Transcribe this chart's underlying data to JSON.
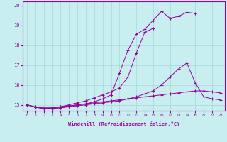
{
  "bg_color": "#c8eef0",
  "grid_color": "#a0d8dc",
  "line_color": "#990099",
  "xlabel": "Windchill (Refroidissement éolien,°C)",
  "x_values": [
    0,
    1,
    2,
    3,
    4,
    5,
    6,
    7,
    8,
    9,
    10,
    11,
    12,
    13,
    14,
    15,
    16,
    17,
    18,
    19,
    20,
    21,
    22,
    23
  ],
  "line1": [
    15.0,
    14.9,
    14.85,
    14.85,
    14.9,
    14.95,
    15.0,
    15.05,
    15.1,
    15.15,
    15.2,
    15.25,
    15.3,
    15.35,
    15.4,
    15.45,
    15.5,
    15.55,
    15.6,
    15.65,
    15.7,
    15.7,
    15.65,
    15.6
  ],
  "line2": [
    15.0,
    14.88,
    14.82,
    14.82,
    14.85,
    14.9,
    14.95,
    15.0,
    15.05,
    15.1,
    15.15,
    15.2,
    15.3,
    15.4,
    15.55,
    15.7,
    16.0,
    16.4,
    16.8,
    17.1,
    16.1,
    15.4,
    15.3,
    15.25
  ],
  "line3": [
    15.0,
    14.88,
    14.82,
    14.82,
    14.85,
    14.92,
    15.0,
    15.05,
    15.15,
    15.3,
    15.5,
    16.6,
    17.75,
    18.55,
    18.8,
    19.25,
    19.7,
    19.35,
    19.45,
    19.65,
    19.6,
    null,
    null,
    null
  ],
  "line4": [
    15.0,
    14.88,
    14.82,
    14.85,
    14.9,
    15.0,
    15.1,
    15.2,
    15.35,
    15.5,
    15.65,
    15.85,
    16.4,
    17.6,
    18.65,
    18.85,
    null,
    null,
    null,
    null,
    null,
    null,
    null,
    null
  ],
  "ylim": [
    14.7,
    20.2
  ],
  "yticks": [
    15,
    16,
    17,
    18,
    19,
    20
  ],
  "xlim": [
    -0.5,
    23.5
  ]
}
